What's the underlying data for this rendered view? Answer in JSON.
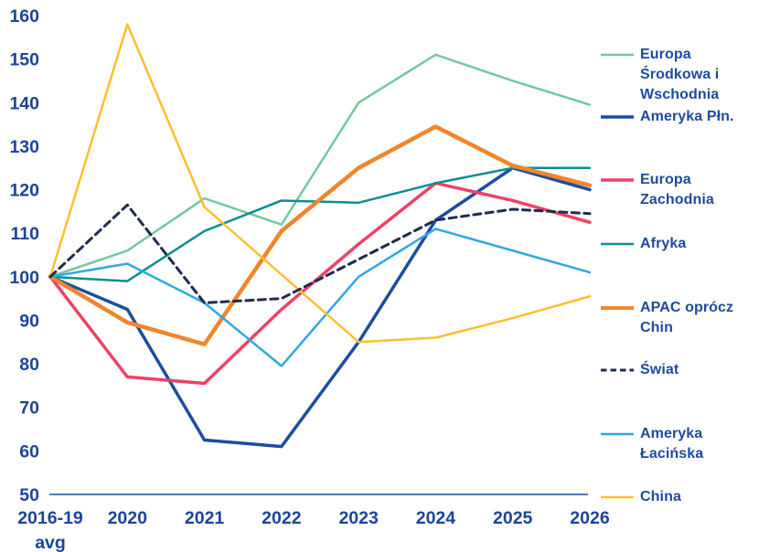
{
  "colors": {
    "background": "#ffffff",
    "axis_text": "#1c449c",
    "axis_line": "#1e4b9b",
    "legend_text": "#1e4a9e"
  },
  "chart_data": {
    "type": "line",
    "title": "",
    "xlabel": "",
    "ylabel": "",
    "x_categories": [
      "2016-19\navg",
      "2020",
      "2021",
      "2022",
      "2023",
      "2024",
      "2025",
      "2026"
    ],
    "ylim": [
      50,
      160
    ],
    "ytick_step": 10,
    "grid": false,
    "legend_position": "right",
    "series": [
      {
        "name": "Europa Środkowa i Wschodnia",
        "legend_label": "Europa Środkowa i\nWschodnia",
        "color": "#73c7a0",
        "dash": "solid",
        "width": 2.5,
        "values": [
          100,
          106,
          118,
          112,
          140,
          151,
          145,
          139.5
        ]
      },
      {
        "name": "Ameryka Płn.",
        "legend_label": "Ameryka Płn.",
        "color": "#1a4f9d",
        "dash": "solid",
        "width": 3.5,
        "values": [
          100,
          92.5,
          62.5,
          61,
          85,
          113,
          125,
          120
        ]
      },
      {
        "name": "Europa Zachodnia",
        "legend_label": "Europa Zachodnia",
        "color": "#ee4166",
        "dash": "solid",
        "width": 3.5,
        "values": [
          100,
          77,
          75.5,
          92.5,
          107.5,
          121.5,
          117.5,
          112.5
        ]
      },
      {
        "name": "Afryka",
        "legend_label": "Afryka",
        "color": "#0e8e90",
        "dash": "solid",
        "width": 2.5,
        "values": [
          100,
          99,
          110.5,
          117.5,
          117,
          121.5,
          125,
          125
        ]
      },
      {
        "name": "APAC oprócz Chin",
        "legend_label": "APAC oprócz Chin",
        "color": "#f0862c",
        "dash": "solid",
        "width": 4.5,
        "values": [
          100,
          89.5,
          84.5,
          110.5,
          125,
          134.5,
          125.5,
          121
        ]
      },
      {
        "name": "Świat",
        "legend_label": "Świat",
        "color": "#1f2c4d",
        "dash": "dashed",
        "width": 3,
        "values": [
          100,
          116.5,
          94,
          95,
          104,
          113,
          115.5,
          114.5
        ]
      },
      {
        "name": "Ameryka Łacińska",
        "legend_label": "Ameryka Łacińska",
        "color": "#2fa8e0",
        "dash": "solid",
        "width": 2.5,
        "values": [
          100,
          103,
          94,
          79.5,
          100,
          111,
          106,
          101
        ]
      },
      {
        "name": "China",
        "legend_label": "China",
        "color": "#f9c12e",
        "dash": "solid",
        "width": 2.5,
        "values": [
          100,
          158,
          116,
          100.5,
          85,
          86,
          90.5,
          95.5
        ]
      }
    ]
  }
}
